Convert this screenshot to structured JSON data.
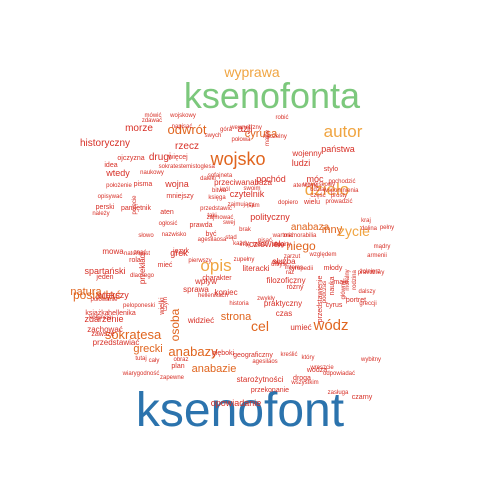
{
  "palette": {
    "blue": "#2b73ad",
    "green": "#7cc87c",
    "orange": "#f0a542",
    "dark_orange": "#e0651f",
    "red": "#d73027"
  },
  "words": [
    {
      "text": "ksenofont",
      "color": "blue"
    },
    {
      "text": "ksenofonta",
      "color": "green"
    },
    {
      "text": "wyprawa",
      "color": "orange"
    },
    {
      "text": "autor",
      "color": "orange"
    },
    {
      "text": "wojsko",
      "color": "dark_orange"
    },
    {
      "text": "dzieło",
      "color": "orange"
    },
    {
      "text": "opis",
      "color": "orange"
    },
    {
      "text": "życie",
      "color": "orange"
    },
    {
      "text": "odwrót",
      "color": "dark_orange"
    },
    {
      "text": "cyrusa",
      "color": "dark_orange"
    },
    {
      "text": "sokratesa",
      "color": "dark_orange"
    },
    {
      "text": "anabazy",
      "color": "dark_orange"
    },
    {
      "text": "wódz",
      "color": "dark_orange"
    },
    {
      "text": "cel",
      "color": "dark_orange"
    },
    {
      "text": "posiadać",
      "color": "dark_orange"
    },
    {
      "text": "grecki",
      "color": "dark_orange"
    },
    {
      "text": "osoba",
      "color": "dark_orange"
    },
    {
      "text": "strona",
      "color": "dark_orange"
    },
    {
      "text": "natura",
      "color": "dark_orange"
    },
    {
      "text": "inny",
      "color": "dark_orange"
    },
    {
      "text": "niego",
      "color": "dark_orange"
    },
    {
      "text": "anabaza",
      "color": "dark_orange"
    },
    {
      "text": "anabazie",
      "color": "dark_orange"
    },
    {
      "text": "opowiadanie",
      "color": "red"
    },
    {
      "text": "historyczny",
      "color": "red"
    },
    {
      "text": "rzecz",
      "color": "red"
    },
    {
      "text": "azji",
      "color": "red"
    },
    {
      "text": "morze",
      "color": "red"
    },
    {
      "text": "drugi",
      "color": "red"
    },
    {
      "text": "wojna",
      "color": "red"
    },
    {
      "text": "wtedy",
      "color": "red"
    },
    {
      "text": "człowiek",
      "color": "red"
    },
    {
      "text": "czytelnik",
      "color": "red"
    },
    {
      "text": "pochód",
      "color": "red"
    },
    {
      "text": "ludzi",
      "color": "red"
    },
    {
      "text": "móc",
      "color": "red"
    },
    {
      "text": "państwa",
      "color": "red"
    },
    {
      "text": "wojenny",
      "color": "red"
    },
    {
      "text": "przeciwanabaza",
      "color": "red"
    },
    {
      "text": "polityczny",
      "color": "red"
    },
    {
      "text": "większy",
      "color": "red"
    },
    {
      "text": "spartański",
      "color": "red"
    },
    {
      "text": "mowa",
      "color": "red"
    },
    {
      "text": "przekład",
      "color": "red"
    },
    {
      "text": "wpływ",
      "color": "red"
    },
    {
      "text": "zdarzenie",
      "color": "red"
    },
    {
      "text": "zachować",
      "color": "red"
    },
    {
      "text": "przedstawiać",
      "color": "red"
    },
    {
      "text": "filozoficzny",
      "color": "red"
    },
    {
      "text": "praktyczny",
      "color": "red"
    },
    {
      "text": "służba",
      "color": "red"
    },
    {
      "text": "koniec",
      "color": "red"
    },
    {
      "text": "widzieć",
      "color": "red"
    },
    {
      "text": "czas",
      "color": "red"
    },
    {
      "text": "umieć",
      "color": "red"
    },
    {
      "text": "droga",
      "color": "red"
    },
    {
      "text": "mało",
      "color": "red"
    },
    {
      "text": "mieć",
      "color": "red"
    },
    {
      "text": "sprawa",
      "color": "red"
    },
    {
      "text": "charakter",
      "color": "red"
    },
    {
      "text": "wielu",
      "color": "red"
    },
    {
      "text": "wojskowy",
      "color": "red"
    },
    {
      "text": "mówić",
      "color": "red"
    },
    {
      "text": "zdawać",
      "color": "red"
    },
    {
      "text": "napisać",
      "color": "red"
    },
    {
      "text": "wewnętrzny",
      "color": "red"
    },
    {
      "text": "naczelny",
      "color": "red"
    },
    {
      "text": "połowa",
      "color": "red"
    },
    {
      "text": "swych",
      "color": "red"
    },
    {
      "text": "góra",
      "color": "red"
    },
    {
      "text": "robić",
      "color": "red"
    },
    {
      "text": "masie",
      "color": "red"
    },
    {
      "text": "więcej",
      "color": "red"
    },
    {
      "text": "stylo",
      "color": "red"
    },
    {
      "text": "ateńczyk",
      "color": "red"
    },
    {
      "text": "pochodzić",
      "color": "red"
    },
    {
      "text": "prosty",
      "color": "red"
    },
    {
      "text": "dopiero",
      "color": "red"
    },
    {
      "text": "ojczyzna",
      "color": "red"
    },
    {
      "text": "idea",
      "color": "red"
    },
    {
      "text": "sokrates",
      "color": "red"
    },
    {
      "text": "naukowy",
      "color": "red"
    },
    {
      "text": "temistoglesa",
      "color": "red"
    },
    {
      "text": "położenie",
      "color": "red"
    },
    {
      "text": "opisywać",
      "color": "red"
    },
    {
      "text": "pisma",
      "color": "red"
    },
    {
      "text": "pamiętnik",
      "color": "red"
    },
    {
      "text": "perski",
      "color": "red"
    },
    {
      "text": "należy",
      "color": "red"
    },
    {
      "text": "pojęcie",
      "color": "red"
    },
    {
      "text": "mniejszy",
      "color": "red"
    },
    {
      "text": "sofajneta",
      "color": "red"
    },
    {
      "text": "daleki",
      "color": "red"
    },
    {
      "text": "bitwa",
      "color": "red"
    },
    {
      "text": "księga",
      "color": "red"
    },
    {
      "text": "zajmujący",
      "color": "red"
    },
    {
      "text": "król",
      "color": "red"
    },
    {
      "text": "swoim",
      "color": "red"
    },
    {
      "text": "udział",
      "color": "red"
    },
    {
      "text": "unwojskowy",
      "color": "red"
    },
    {
      "text": "wspomnienia",
      "color": "red"
    },
    {
      "text": "prowadzić",
      "color": "red"
    },
    {
      "text": "część",
      "color": "red"
    },
    {
      "text": "sam",
      "color": "red"
    },
    {
      "text": "przedstawić",
      "color": "red"
    },
    {
      "text": "aten",
      "color": "red"
    },
    {
      "text": "taki",
      "color": "red"
    },
    {
      "text": "zajmować",
      "color": "red"
    },
    {
      "text": "ogłosić",
      "color": "red"
    },
    {
      "text": "prawda",
      "color": "red"
    },
    {
      "text": "swej",
      "color": "red"
    },
    {
      "text": "stąd",
      "color": "red"
    },
    {
      "text": "brak",
      "color": "red"
    },
    {
      "text": "wartość",
      "color": "red"
    },
    {
      "text": "memorabilia",
      "color": "red"
    },
    {
      "text": "nazwisko",
      "color": "red"
    },
    {
      "text": "być",
      "color": "red"
    },
    {
      "text": "imię",
      "color": "red"
    },
    {
      "text": "pisać",
      "color": "red"
    },
    {
      "text": "sparty",
      "color": "red"
    },
    {
      "text": "agesilaosa",
      "color": "red"
    },
    {
      "text": "każdy",
      "color": "red"
    },
    {
      "text": "tożeż",
      "color": "red"
    },
    {
      "text": "długi",
      "color": "red"
    },
    {
      "text": "znać",
      "color": "red"
    },
    {
      "text": "język",
      "color": "red"
    },
    {
      "text": "grek",
      "color": "red"
    },
    {
      "text": "rola",
      "color": "red"
    },
    {
      "text": "pierwszy",
      "color": "red"
    },
    {
      "text": "jeden",
      "color": "red"
    },
    {
      "text": "kraj",
      "color": "red"
    },
    {
      "text": "dolina",
      "color": "red"
    },
    {
      "text": "pełny",
      "color": "red"
    },
    {
      "text": "armenii",
      "color": "red"
    },
    {
      "text": "pravdziwy",
      "color": "red"
    },
    {
      "text": "żołnierz",
      "color": "red"
    },
    {
      "text": "mądry",
      "color": "red"
    },
    {
      "text": "dalszy",
      "color": "red"
    },
    {
      "text": "rodzina",
      "color": "red"
    },
    {
      "text": "moralny",
      "color": "red"
    },
    {
      "text": "główny",
      "color": "red"
    },
    {
      "text": "przedstawienie",
      "color": "red"
    },
    {
      "text": "podczas",
      "color": "red"
    },
    {
      "text": "młody",
      "color": "red"
    },
    {
      "text": "nauka",
      "color": "red"
    },
    {
      "text": "zarzut",
      "color": "red"
    },
    {
      "text": "myśl",
      "color": "red"
    },
    {
      "text": "umysł",
      "color": "red"
    },
    {
      "text": "cyropedii",
      "color": "red"
    },
    {
      "text": "literacki",
      "color": "red"
    },
    {
      "text": "interes",
      "color": "red"
    },
    {
      "text": "raz",
      "color": "red"
    },
    {
      "text": "zupełny",
      "color": "red"
    },
    {
      "text": "różny",
      "color": "red"
    },
    {
      "text": "cyrus",
      "color": "red"
    },
    {
      "text": "portret",
      "color": "red"
    },
    {
      "text": "greccji",
      "color": "red"
    },
    {
      "text": "książka",
      "color": "red"
    },
    {
      "text": "korynciei",
      "color": "red"
    },
    {
      "text": "peloponeski",
      "color": "red"
    },
    {
      "text": "połowanie",
      "color": "red"
    },
    {
      "text": "zawsze",
      "color": "red"
    },
    {
      "text": "hellenika",
      "color": "red"
    },
    {
      "text": "hellenikach",
      "color": "red"
    },
    {
      "text": "historia",
      "color": "red"
    },
    {
      "text": "zwykły",
      "color": "red"
    },
    {
      "text": "względem",
      "color": "red"
    },
    {
      "text": "czym",
      "color": "red"
    },
    {
      "text": "wielki",
      "color": "red"
    },
    {
      "text": "tutaj",
      "color": "red"
    },
    {
      "text": "cały",
      "color": "red"
    },
    {
      "text": "obraz",
      "color": "red"
    },
    {
      "text": "plan",
      "color": "red"
    },
    {
      "text": "wiarygodność",
      "color": "red"
    },
    {
      "text": "głęboki",
      "color": "red"
    },
    {
      "text": "geograficzny",
      "color": "red"
    },
    {
      "text": "agesilaos",
      "color": "red"
    },
    {
      "text": "kreślić",
      "color": "red"
    },
    {
      "text": "który",
      "color": "red"
    },
    {
      "text": "wodza",
      "color": "red"
    },
    {
      "text": "wreszcie",
      "color": "red"
    },
    {
      "text": "odpowiadać",
      "color": "red"
    },
    {
      "text": "wybitny",
      "color": "red"
    },
    {
      "text": "wszystkim",
      "color": "red"
    },
    {
      "text": "czarny",
      "color": "red"
    },
    {
      "text": "zapewne",
      "color": "red"
    },
    {
      "text": "starożytności",
      "color": "red"
    },
    {
      "text": "przekonanie",
      "color": "red"
    },
    {
      "text": "zasługa",
      "color": "red"
    },
    {
      "text": "słowo",
      "color": "red"
    },
    {
      "text": "natomiast",
      "color": "red"
    },
    {
      "text": "dlaczego",
      "color": "red"
    },
    {
      "text": "siebie",
      "color": "red"
    },
    {
      "text": "poczuć",
      "color": "red"
    }
  ]
}
